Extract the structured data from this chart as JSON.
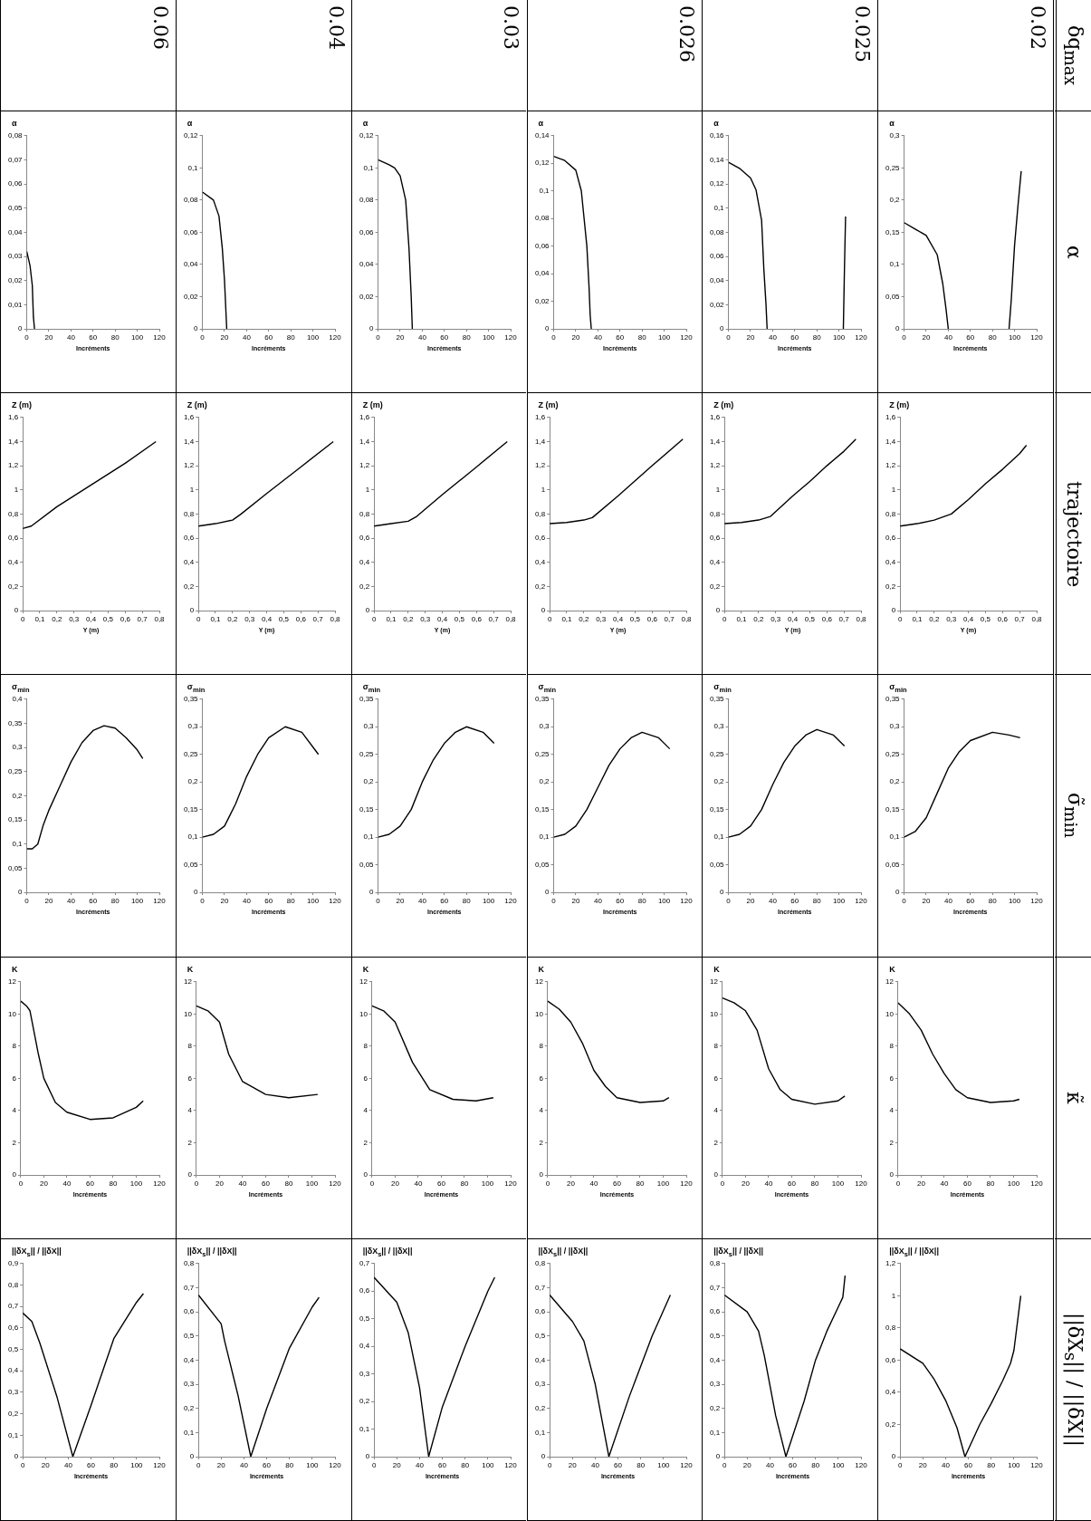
{
  "chart_data": [
    {
      "type": "other",
      "categories": [
        "δq$_{max}$",
        "α",
        "trajectoire",
        "σ̃$_{min}$",
        "κ̃",
        "||δX$_{s}$|| / ||δX||"
      ],
      "y_categories": [
        "0.02",
        "0.025",
        "0.026",
        "0.03",
        "0.04",
        "0.06"
      ]
    },
    {
      "type": "line",
      "ylabel": "α",
      "xlabel": "Incréments",
      "xlim": [
        0,
        120
      ],
      "xticks": [
        0,
        20,
        40,
        60,
        80,
        100,
        120
      ],
      "ylim": [
        0,
        0.3
      ],
      "yticks": [
        0,
        {
          "value": 0.05,
          "label": "0,05"
        },
        {
          "value": 0.1,
          "label": "0,1"
        },
        {
          "value": 0.15,
          "label": "0,15"
        },
        {
          "value": 0.2,
          "label": "0,2"
        },
        {
          "value": 0.25,
          "label": "0,25"
        },
        {
          "value": 0.3,
          "label": "0,3"
        }
      ],
      "color": "#000000",
      "x": [
        0,
        10,
        20,
        30,
        35,
        38,
        40,
        60,
        95,
        97,
        100,
        103,
        106
      ],
      "values": [
        0.165,
        0.155,
        0.145,
        0.115,
        0.07,
        0.03,
        0,
        null,
        0,
        0.045,
        0.13,
        0.19,
        0.245
      ]
    },
    {
      "type": "line",
      "ylabel": "Z (m)",
      "xlabel": "Y (m)",
      "xlim": [
        0,
        0.8
      ],
      "xticks": [
        0,
        {
          "value": 0.1,
          "label": "0,1"
        },
        {
          "value": 0.2,
          "label": "0,2"
        },
        {
          "value": 0.3,
          "label": "0,3"
        },
        {
          "value": 0.4,
          "label": "0,4"
        },
        {
          "value": 0.5,
          "label": "0,5"
        },
        {
          "value": 0.6,
          "label": "0,6"
        },
        {
          "value": 0.7,
          "label": "0,7"
        },
        {
          "value": 0.8,
          "label": "0,8"
        }
      ],
      "ylim": [
        0,
        1.6
      ],
      "yticks": [
        0,
        {
          "value": 0.2,
          "label": "0,2"
        },
        {
          "value": 0.4,
          "label": "0,4"
        },
        {
          "value": 0.6,
          "label": "0,6"
        },
        {
          "value": 0.8,
          "label": "0,8"
        },
        1,
        {
          "value": 1.2,
          "label": "1,2"
        },
        {
          "value": 1.4,
          "label": "1,4"
        },
        {
          "value": 1.6,
          "label": "1,6"
        }
      ],
      "color": "#000000",
      "x": [
        0,
        0.1,
        0.2,
        0.3,
        0.4,
        0.5,
        0.6,
        0.7,
        0.74
      ],
      "values": [
        0.7,
        0.72,
        0.75,
        0.8,
        0.92,
        1.05,
        1.17,
        1.3,
        1.37
      ]
    },
    {
      "type": "line",
      "ylabel": "σ$_{min}$",
      "xlabel": "Incréments",
      "xlim": [
        0,
        120
      ],
      "xticks": [
        0,
        20,
        40,
        60,
        80,
        100,
        120
      ],
      "ylim": [
        0,
        0.35
      ],
      "yticks": [
        0,
        {
          "value": 0.05,
          "label": "0,05"
        },
        {
          "value": 0.1,
          "label": "0,1"
        },
        {
          "value": 0.15,
          "label": "0,15"
        },
        {
          "value": 0.2,
          "label": "0,2"
        },
        {
          "value": 0.25,
          "label": "0,25"
        },
        {
          "value": 0.3,
          "label": "0,3"
        },
        {
          "value": 0.35,
          "label": "0,35"
        }
      ],
      "color": "#000000",
      "x": [
        0,
        10,
        20,
        30,
        40,
        50,
        60,
        80,
        95,
        105
      ],
      "values": [
        0.1,
        0.11,
        0.135,
        0.18,
        0.225,
        0.255,
        0.275,
        0.29,
        0.285,
        0.28
      ]
    },
    {
      "type": "line",
      "ylabel": "K",
      "xlabel": "Incréments",
      "xlim": [
        0,
        120
      ],
      "xticks": [
        0,
        20,
        40,
        60,
        80,
        100,
        120
      ],
      "ylim": [
        0,
        12
      ],
      "yticks": [
        0,
        2,
        4,
        6,
        8,
        10,
        12
      ],
      "color": "#000000",
      "x": [
        0,
        10,
        20,
        30,
        40,
        50,
        60,
        80,
        100,
        105
      ],
      "values": [
        10.7,
        10,
        9,
        7.5,
        6.3,
        5.3,
        4.8,
        4.5,
        4.6,
        4.7
      ]
    },
    {
      "type": "line",
      "ylabel": "||δX$_{s}$|| / ||δX||",
      "xlabel": "Incréments",
      "xlim": [
        0,
        120
      ],
      "xticks": [
        0,
        20,
        40,
        60,
        80,
        100,
        120
      ],
      "ylim": [
        0,
        1.2
      ],
      "yticks": [
        0,
        {
          "value": 0.2,
          "label": "0,2"
        },
        {
          "value": 0.4,
          "label": "0,4"
        },
        {
          "value": 0.6,
          "label": "0,6"
        },
        {
          "value": 0.8,
          "label": "0,8"
        },
        1,
        {
          "value": 1.2,
          "label": "1,2"
        }
      ],
      "color": "#000000",
      "x": [
        0,
        20,
        30,
        40,
        50,
        57,
        70,
        80,
        90,
        97,
        100,
        106
      ],
      "values": [
        0.67,
        0.58,
        0.48,
        0.35,
        0.18,
        0,
        0.2,
        0.33,
        0.47,
        0.58,
        0.66,
        1.0
      ]
    },
    {
      "type": "line",
      "ylabel": "α",
      "xlabel": "Incréments",
      "xlim": [
        0,
        120
      ],
      "xticks": [
        0,
        20,
        40,
        60,
        80,
        100,
        120
      ],
      "ylim": [
        0,
        0.16
      ],
      "yticks": [
        0,
        {
          "value": 0.02,
          "label": "0,02"
        },
        {
          "value": 0.04,
          "label": "0,04"
        },
        {
          "value": 0.06,
          "label": "0,06"
        },
        {
          "value": 0.08,
          "label": "0,08"
        },
        {
          "value": 0.1,
          "label": "0,1"
        },
        {
          "value": 0.12,
          "label": "0,12"
        },
        {
          "value": 0.14,
          "label": "0,14"
        },
        {
          "value": 0.16,
          "label": "0,16"
        }
      ],
      "color": "#000000",
      "x": [
        0,
        10,
        20,
        25,
        30,
        32,
        34,
        35,
        70,
        104,
        105,
        106
      ],
      "values": [
        0.138,
        0.133,
        0.125,
        0.115,
        0.09,
        0.05,
        0.02,
        0,
        null,
        0,
        0.05,
        0.093
      ]
    },
    {
      "type": "line",
      "ylabel": "Z (m)",
      "xlabel": "Y (m)",
      "xlim": [
        0,
        0.8
      ],
      "xticks": [
        0,
        {
          "value": 0.1,
          "label": "0,1"
        },
        {
          "value": 0.2,
          "label": "0,2"
        },
        {
          "value": 0.3,
          "label": "0,3"
        },
        {
          "value": 0.4,
          "label": "0,4"
        },
        {
          "value": 0.5,
          "label": "0,5"
        },
        {
          "value": 0.6,
          "label": "0,6"
        },
        {
          "value": 0.7,
          "label": "0,7"
        },
        {
          "value": 0.8,
          "label": "0,8"
        }
      ],
      "ylim": [
        0,
        1.6
      ],
      "yticks": [
        0,
        {
          "value": 0.2,
          "label": "0,2"
        },
        {
          "value": 0.4,
          "label": "0,4"
        },
        {
          "value": 0.6,
          "label": "0,6"
        },
        {
          "value": 0.8,
          "label": "0,8"
        },
        1,
        {
          "value": 1.2,
          "label": "1,2"
        },
        {
          "value": 1.4,
          "label": "1,4"
        },
        {
          "value": 1.6,
          "label": "1,6"
        }
      ],
      "color": "#000000",
      "x": [
        0,
        0.1,
        0.2,
        0.27,
        0.4,
        0.5,
        0.6,
        0.7,
        0.77
      ],
      "values": [
        0.72,
        0.73,
        0.75,
        0.78,
        0.95,
        1.07,
        1.2,
        1.32,
        1.42
      ]
    },
    {
      "type": "line",
      "ylabel": "σ$_{min}$",
      "xlabel": "Incréments",
      "xlim": [
        0,
        120
      ],
      "xticks": [
        0,
        20,
        40,
        60,
        80,
        100,
        120
      ],
      "ylim": [
        0,
        0.35
      ],
      "yticks": [
        0,
        {
          "value": 0.05,
          "label": "0,05"
        },
        {
          "value": 0.1,
          "label": "0,1"
        },
        {
          "value": 0.15,
          "label": "0,15"
        },
        {
          "value": 0.2,
          "label": "0,2"
        },
        {
          "value": 0.25,
          "label": "0,25"
        },
        {
          "value": 0.3,
          "label": "0,3"
        },
        {
          "value": 0.35,
          "label": "0,35"
        }
      ],
      "color": "#000000",
      "x": [
        0,
        10,
        20,
        30,
        40,
        50,
        60,
        70,
        80,
        95,
        105
      ],
      "values": [
        0.1,
        0.105,
        0.12,
        0.15,
        0.195,
        0.235,
        0.265,
        0.285,
        0.295,
        0.285,
        0.265
      ]
    },
    {
      "type": "line",
      "ylabel": "K",
      "xlabel": "Incréments",
      "xlim": [
        0,
        120
      ],
      "xticks": [
        0,
        20,
        40,
        60,
        80,
        100,
        120
      ],
      "ylim": [
        0,
        12
      ],
      "yticks": [
        0,
        2,
        4,
        6,
        8,
        10,
        12
      ],
      "color": "#000000",
      "x": [
        0,
        10,
        20,
        30,
        40,
        50,
        60,
        80,
        100,
        106
      ],
      "values": [
        11,
        10.7,
        10.2,
        9,
        6.6,
        5.3,
        4.7,
        4.4,
        4.6,
        4.9
      ]
    },
    {
      "type": "line",
      "ylabel": "||δX$_{s}$|| / ||δX||",
      "xlabel": "Incréments",
      "xlim": [
        0,
        120
      ],
      "xticks": [
        0,
        20,
        40,
        60,
        80,
        100,
        120
      ],
      "ylim": [
        0,
        0.8
      ],
      "yticks": [
        0,
        {
          "value": 0.1,
          "label": "0,1"
        },
        {
          "value": 0.2,
          "label": "0,2"
        },
        {
          "value": 0.3,
          "label": "0,3"
        },
        {
          "value": 0.4,
          "label": "0,4"
        },
        {
          "value": 0.5,
          "label": "0,5"
        },
        {
          "value": 0.6,
          "label": "0,6"
        },
        {
          "value": 0.7,
          "label": "0,7"
        },
        {
          "value": 0.8,
          "label": "0,8"
        }
      ],
      "color": "#000000",
      "x": [
        0,
        20,
        30,
        35,
        37,
        45,
        54,
        70,
        80,
        90,
        100,
        104,
        106
      ],
      "values": [
        0.67,
        0.6,
        0.52,
        0.42,
        0.37,
        0.17,
        0,
        0.23,
        0.4,
        0.52,
        0.62,
        0.66,
        0.75
      ]
    },
    {
      "type": "line",
      "ylabel": "α",
      "xlabel": "Incréments",
      "xlim": [
        0,
        120
      ],
      "xticks": [
        0,
        20,
        40,
        60,
        80,
        100,
        120
      ],
      "ylim": [
        0,
        0.14
      ],
      "yticks": [
        0,
        {
          "value": 0.02,
          "label": "0,02"
        },
        {
          "value": 0.04,
          "label": "0,04"
        },
        {
          "value": 0.06,
          "label": "0,06"
        },
        {
          "value": 0.08,
          "label": "0,08"
        },
        {
          "value": 0.1,
          "label": "0,1"
        },
        {
          "value": 0.12,
          "label": "0,12"
        },
        {
          "value": 0.14,
          "label": "0,14"
        }
      ],
      "color": "#000000",
      "x": [
        0,
        10,
        20,
        25,
        30,
        32,
        33,
        34
      ],
      "values": [
        0.125,
        0.122,
        0.115,
        0.1,
        0.06,
        0.03,
        0.01,
        0
      ]
    },
    {
      "type": "line",
      "ylabel": "Z (m)",
      "xlabel": "Y (m)",
      "xlim": [
        0,
        0.8
      ],
      "xticks": [
        0,
        {
          "value": 0.1,
          "label": "0,1"
        },
        {
          "value": 0.2,
          "label": "0,2"
        },
        {
          "value": 0.3,
          "label": "0,3"
        },
        {
          "value": 0.4,
          "label": "0,4"
        },
        {
          "value": 0.5,
          "label": "0,5"
        },
        {
          "value": 0.6,
          "label": "0,6"
        },
        {
          "value": 0.7,
          "label": "0,7"
        },
        {
          "value": 0.8,
          "label": "0,8"
        }
      ],
      "ylim": [
        0,
        1.6
      ],
      "yticks": [
        0,
        {
          "value": 0.2,
          "label": "0,2"
        },
        {
          "value": 0.4,
          "label": "0,4"
        },
        {
          "value": 0.6,
          "label": "0,6"
        },
        {
          "value": 0.8,
          "label": "0,8"
        },
        1,
        {
          "value": 1.2,
          "label": "1,2"
        },
        {
          "value": 1.4,
          "label": "1,4"
        },
        {
          "value": 1.6,
          "label": "1,6"
        }
      ],
      "color": "#000000",
      "x": [
        0,
        0.1,
        0.2,
        0.25,
        0.4,
        0.6,
        0.78
      ],
      "values": [
        0.72,
        0.73,
        0.75,
        0.77,
        0.95,
        1.2,
        1.42
      ]
    },
    {
      "type": "line",
      "ylabel": "σ$_{min}$",
      "xlabel": "Incréments",
      "xlim": [
        0,
        120
      ],
      "xticks": [
        0,
        20,
        40,
        60,
        80,
        100,
        120
      ],
      "ylim": [
        0,
        0.35
      ],
      "yticks": [
        0,
        {
          "value": 0.05,
          "label": "0,05"
        },
        {
          "value": 0.1,
          "label": "0,1"
        },
        {
          "value": 0.15,
          "label": "0,15"
        },
        {
          "value": 0.2,
          "label": "0,2"
        },
        {
          "value": 0.25,
          "label": "0,25"
        },
        {
          "value": 0.3,
          "label": "0,3"
        },
        {
          "value": 0.35,
          "label": "0,35"
        }
      ],
      "color": "#000000",
      "x": [
        0,
        10,
        20,
        30,
        40,
        50,
        60,
        70,
        80,
        95,
        105
      ],
      "values": [
        0.1,
        0.105,
        0.12,
        0.15,
        0.19,
        0.23,
        0.26,
        0.28,
        0.29,
        0.28,
        0.26
      ]
    },
    {
      "type": "line",
      "ylabel": "K",
      "xlabel": "Incréments",
      "xlim": [
        0,
        120
      ],
      "xticks": [
        0,
        20,
        40,
        60,
        80,
        100,
        120
      ],
      "ylim": [
        0,
        12
      ],
      "yticks": [
        0,
        2,
        4,
        6,
        8,
        10,
        12
      ],
      "color": "#000000",
      "x": [
        0,
        10,
        20,
        30,
        40,
        50,
        60,
        80,
        100,
        105
      ],
      "values": [
        10.8,
        10.3,
        9.5,
        8.2,
        6.5,
        5.5,
        4.8,
        4.5,
        4.6,
        4.8
      ]
    },
    {
      "type": "line",
      "ylabel": "||δX$_{s}$|| / ||δX||",
      "xlabel": "Incréments",
      "xlim": [
        0,
        120
      ],
      "xticks": [
        0,
        20,
        40,
        60,
        80,
        100,
        120
      ],
      "ylim": [
        0,
        0.8
      ],
      "yticks": [
        0,
        {
          "value": 0.1,
          "label": "0,1"
        },
        {
          "value": 0.2,
          "label": "0,2"
        },
        {
          "value": 0.3,
          "label": "0,3"
        },
        {
          "value": 0.4,
          "label": "0,4"
        },
        {
          "value": 0.5,
          "label": "0,5"
        },
        {
          "value": 0.6,
          "label": "0,6"
        },
        {
          "value": 0.7,
          "label": "0,7"
        },
        {
          "value": 0.8,
          "label": "0,8"
        }
      ],
      "color": "#000000",
      "x": [
        0,
        20,
        30,
        40,
        52,
        70,
        90,
        106
      ],
      "values": [
        0.67,
        0.56,
        0.48,
        0.3,
        0,
        0.25,
        0.5,
        0.67
      ]
    },
    {
      "type": "line",
      "ylabel": "α",
      "xlabel": "Incréments",
      "xlim": [
        0,
        120
      ],
      "xticks": [
        0,
        20,
        40,
        60,
        80,
        100,
        120
      ],
      "ylim": [
        0,
        0.12
      ],
      "yticks": [
        0,
        {
          "value": 0.02,
          "label": "0,02"
        },
        {
          "value": 0.04,
          "label": "0,04"
        },
        {
          "value": 0.06,
          "label": "0,06"
        },
        {
          "value": 0.08,
          "label": "0,08"
        },
        {
          "value": 0.1,
          "label": "0,1"
        },
        {
          "value": 0.12,
          "label": "0,12"
        }
      ],
      "color": "#000000",
      "x": [
        0,
        10,
        15,
        20,
        25,
        28,
        30,
        31
      ],
      "values": [
        0.105,
        0.102,
        0.1,
        0.095,
        0.08,
        0.05,
        0.02,
        0
      ]
    },
    {
      "type": "line",
      "ylabel": "Z (m)",
      "xlabel": "Y (m)",
      "xlim": [
        0,
        0.8
      ],
      "xticks": [
        0,
        {
          "value": 0.1,
          "label": "0,1"
        },
        {
          "value": 0.2,
          "label": "0,2"
        },
        {
          "value": 0.3,
          "label": "0,3"
        },
        {
          "value": 0.4,
          "label": "0,4"
        },
        {
          "value": 0.5,
          "label": "0,5"
        },
        {
          "value": 0.6,
          "label": "0,6"
        },
        {
          "value": 0.7,
          "label": "0,7"
        },
        {
          "value": 0.8,
          "label": "0,8"
        }
      ],
      "ylim": [
        0,
        1.6
      ],
      "yticks": [
        0,
        {
          "value": 0.2,
          "label": "0,2"
        },
        {
          "value": 0.4,
          "label": "0,4"
        },
        {
          "value": 0.6,
          "label": "0,6"
        },
        {
          "value": 0.8,
          "label": "0,8"
        },
        1,
        {
          "value": 1.2,
          "label": "1,2"
        },
        {
          "value": 1.4,
          "label": "1,4"
        },
        {
          "value": 1.6,
          "label": "1,6"
        }
      ],
      "color": "#000000",
      "x": [
        0,
        0.1,
        0.2,
        0.25,
        0.4,
        0.6,
        0.78
      ],
      "values": [
        0.7,
        0.72,
        0.74,
        0.78,
        0.96,
        1.19,
        1.4
      ]
    },
    {
      "type": "line",
      "ylabel": "σ$_{min}$",
      "xlabel": "Incréments",
      "xlim": [
        0,
        120
      ],
      "xticks": [
        0,
        20,
        40,
        60,
        80,
        100,
        120
      ],
      "ylim": [
        0,
        0.35
      ],
      "yticks": [
        0,
        {
          "value": 0.05,
          "label": "0,05"
        },
        {
          "value": 0.1,
          "label": "0,1"
        },
        {
          "value": 0.15,
          "label": "0,15"
        },
        {
          "value": 0.2,
          "label": "0,2"
        },
        {
          "value": 0.25,
          "label": "0,25"
        },
        {
          "value": 0.3,
          "label": "0,3"
        },
        {
          "value": 0.35,
          "label": "0,35"
        }
      ],
      "color": "#000000",
      "x": [
        0,
        10,
        20,
        30,
        40,
        50,
        60,
        70,
        80,
        95,
        105
      ],
      "values": [
        0.1,
        0.105,
        0.12,
        0.15,
        0.2,
        0.24,
        0.27,
        0.29,
        0.3,
        0.29,
        0.27
      ]
    },
    {
      "type": "line",
      "ylabel": "K",
      "xlabel": "Incréments",
      "xlim": [
        0,
        120
      ],
      "xticks": [
        0,
        20,
        40,
        60,
        80,
        100,
        120
      ],
      "ylim": [
        0,
        12
      ],
      "yticks": [
        0,
        2,
        4,
        6,
        8,
        10,
        12
      ],
      "color": "#000000",
      "x": [
        0,
        10,
        20,
        35,
        50,
        70,
        90,
        105
      ],
      "values": [
        10.5,
        10.2,
        9.5,
        7,
        5.3,
        4.7,
        4.6,
        4.8
      ]
    },
    {
      "type": "line",
      "ylabel": "||δX$_{s}$|| / ||δX||",
      "xlabel": "Incréments",
      "xlim": [
        0,
        120
      ],
      "xticks": [
        0,
        20,
        40,
        60,
        80,
        100,
        120
      ],
      "ylim": [
        0,
        0.7
      ],
      "yticks": [
        0,
        {
          "value": 0.1,
          "label": "0,1"
        },
        {
          "value": 0.2,
          "label": "0,2"
        },
        {
          "value": 0.3,
          "label": "0,3"
        },
        {
          "value": 0.4,
          "label": "0,4"
        },
        {
          "value": 0.5,
          "label": "0,5"
        },
        {
          "value": 0.6,
          "label": "0,6"
        },
        {
          "value": 0.7,
          "label": "0,7"
        }
      ],
      "color": "#000000",
      "x": [
        0,
        20,
        30,
        40,
        48,
        60,
        80,
        100,
        106
      ],
      "values": [
        0.65,
        0.56,
        0.45,
        0.25,
        0,
        0.18,
        0.4,
        0.6,
        0.65
      ]
    },
    {
      "type": "line",
      "ylabel": "α",
      "xlabel": "Incréments",
      "xlim": [
        0,
        120
      ],
      "xticks": [
        0,
        20,
        40,
        60,
        80,
        100,
        120
      ],
      "ylim": [
        0,
        0.12
      ],
      "yticks": [
        0,
        {
          "value": 0.02,
          "label": "0,02"
        },
        {
          "value": 0.04,
          "label": "0,04"
        },
        {
          "value": 0.06,
          "label": "0,06"
        },
        {
          "value": 0.08,
          "label": "0,08"
        },
        {
          "value": 0.1,
          "label": "0,1"
        },
        {
          "value": 0.12,
          "label": "0,12"
        }
      ],
      "color": "#000000",
      "x": [
        0,
        10,
        15,
        18,
        20,
        22
      ],
      "values": [
        0.085,
        0.08,
        0.07,
        0.05,
        0.03,
        0
      ]
    },
    {
      "type": "line",
      "ylabel": "Z (m)",
      "xlabel": "Y (m)",
      "xlim": [
        0,
        0.8
      ],
      "xticks": [
        0,
        {
          "value": 0.1,
          "label": "0,1"
        },
        {
          "value": 0.2,
          "label": "0,2"
        },
        {
          "value": 0.3,
          "label": "0,3"
        },
        {
          "value": 0.4,
          "label": "0,4"
        },
        {
          "value": 0.5,
          "label": "0,5"
        },
        {
          "value": 0.6,
          "label": "0,6"
        },
        {
          "value": 0.7,
          "label": "0,7"
        },
        {
          "value": 0.8,
          "label": "0,8"
        }
      ],
      "ylim": [
        0,
        1.6
      ],
      "yticks": [
        0,
        {
          "value": 0.2,
          "label": "0,2"
        },
        {
          "value": 0.4,
          "label": "0,4"
        },
        {
          "value": 0.6,
          "label": "0,6"
        },
        {
          "value": 0.8,
          "label": "0,8"
        },
        1,
        {
          "value": 1.2,
          "label": "1,2"
        },
        {
          "value": 1.4,
          "label": "1,4"
        },
        {
          "value": 1.6,
          "label": "1,6"
        }
      ],
      "color": "#000000",
      "x": [
        0,
        0.1,
        0.2,
        0.25,
        0.4,
        0.6,
        0.79
      ],
      "values": [
        0.7,
        0.72,
        0.75,
        0.8,
        0.97,
        1.19,
        1.4
      ]
    },
    {
      "type": "line",
      "ylabel": "σ$_{min}$",
      "xlabel": "Incréments",
      "xlim": [
        0,
        120
      ],
      "xticks": [
        0,
        20,
        40,
        60,
        80,
        100,
        120
      ],
      "ylim": [
        0,
        0.35
      ],
      "yticks": [
        0,
        {
          "value": 0.05,
          "label": "0,05"
        },
        {
          "value": 0.1,
          "label": "0,1"
        },
        {
          "value": 0.15,
          "label": "0,15"
        },
        {
          "value": 0.2,
          "label": "0,2"
        },
        {
          "value": 0.25,
          "label": "0,25"
        },
        {
          "value": 0.3,
          "label": "0,3"
        },
        {
          "value": 0.35,
          "label": "0,35"
        }
      ],
      "color": "#000000",
      "x": [
        0,
        10,
        20,
        30,
        40,
        50,
        60,
        75,
        90,
        105
      ],
      "values": [
        0.1,
        0.105,
        0.12,
        0.16,
        0.21,
        0.25,
        0.28,
        0.3,
        0.29,
        0.25
      ]
    },
    {
      "type": "line",
      "ylabel": "K",
      "xlabel": "Incréments",
      "xlim": [
        0,
        120
      ],
      "xticks": [
        0,
        20,
        40,
        60,
        80,
        100,
        120
      ],
      "ylim": [
        0,
        12
      ],
      "yticks": [
        0,
        2,
        4,
        6,
        8,
        10,
        12
      ],
      "color": "#000000",
      "x": [
        0,
        10,
        20,
        28,
        40,
        60,
        80,
        105
      ],
      "values": [
        10.5,
        10.2,
        9.5,
        7.5,
        5.8,
        5,
        4.8,
        5
      ]
    },
    {
      "type": "line",
      "ylabel": "||δX$_{s}$|| / ||δX||",
      "xlabel": "Incréments",
      "xlim": [
        0,
        120
      ],
      "xticks": [
        0,
        20,
        40,
        60,
        80,
        100,
        120
      ],
      "ylim": [
        0,
        0.8
      ],
      "yticks": [
        0,
        {
          "value": 0.1,
          "label": "0,1"
        },
        {
          "value": 0.2,
          "label": "0,2"
        },
        {
          "value": 0.3,
          "label": "0,3"
        },
        {
          "value": 0.4,
          "label": "0,4"
        },
        {
          "value": 0.5,
          "label": "0,5"
        },
        {
          "value": 0.6,
          "label": "0,6"
        },
        {
          "value": 0.7,
          "label": "0,7"
        },
        {
          "value": 0.8,
          "label": "0,8"
        }
      ],
      "color": "#000000",
      "x": [
        0,
        20,
        23,
        35,
        46,
        60,
        80,
        100,
        106
      ],
      "values": [
        0.67,
        0.55,
        0.48,
        0.25,
        0,
        0.2,
        0.45,
        0.62,
        0.66
      ]
    },
    {
      "type": "line",
      "ylabel": "α",
      "xlabel": "Incréments",
      "xlim": [
        0,
        120
      ],
      "xticks": [
        0,
        20,
        40,
        60,
        80,
        100,
        120
      ],
      "ylim": [
        0,
        0.08
      ],
      "yticks": [
        0,
        {
          "value": 0.01,
          "label": "0,01"
        },
        {
          "value": 0.02,
          "label": "0,02"
        },
        {
          "value": 0.03,
          "label": "0,03"
        },
        {
          "value": 0.04,
          "label": "0,04"
        },
        {
          "value": 0.05,
          "label": "0,05"
        },
        {
          "value": 0.06,
          "label": "0,06"
        },
        {
          "value": 0.07,
          "label": "0,07"
        },
        {
          "value": 0.08,
          "label": "0,08"
        }
      ],
      "color": "#000000",
      "x": [
        0,
        3,
        5,
        6,
        7
      ],
      "values": [
        0.032,
        0.026,
        0.018,
        0.005,
        0
      ]
    },
    {
      "type": "line",
      "ylabel": "Z (m)",
      "xlabel": "Y (m)",
      "xlim": [
        0,
        0.8
      ],
      "xticks": [
        0,
        {
          "value": 0.1,
          "label": "0,1"
        },
        {
          "value": 0.2,
          "label": "0,2"
        },
        {
          "value": 0.3,
          "label": "0,3"
        },
        {
          "value": 0.4,
          "label": "0,4"
        },
        {
          "value": 0.5,
          "label": "0,5"
        },
        {
          "value": 0.6,
          "label": "0,6"
        },
        {
          "value": 0.7,
          "label": "0,7"
        },
        {
          "value": 0.8,
          "label": "0,8"
        }
      ],
      "ylim": [
        0,
        1.6
      ],
      "yticks": [
        0,
        {
          "value": 0.2,
          "label": "0,2"
        },
        {
          "value": 0.4,
          "label": "0,4"
        },
        {
          "value": 0.6,
          "label": "0,6"
        },
        {
          "value": 0.8,
          "label": "0,8"
        },
        1,
        {
          "value": 1.2,
          "label": "1,2"
        },
        {
          "value": 1.4,
          "label": "1,4"
        },
        {
          "value": 1.6,
          "label": "1,6"
        }
      ],
      "color": "#000000",
      "x": [
        0,
        0.05,
        0.2,
        0.4,
        0.6,
        0.78
      ],
      "values": [
        0.68,
        0.7,
        0.86,
        1.04,
        1.22,
        1.4
      ]
    },
    {
      "type": "line",
      "ylabel": "σ$_{min}$",
      "xlabel": "Incréments",
      "xlim": [
        0,
        120
      ],
      "xticks": [
        0,
        20,
        40,
        60,
        80,
        100,
        120
      ],
      "ylim": [
        0,
        0.4
      ],
      "yticks": [
        0,
        {
          "value": 0.05,
          "label": "0,05"
        },
        {
          "value": 0.1,
          "label": "0,1"
        },
        {
          "value": 0.15,
          "label": "0,15"
        },
        {
          "value": 0.2,
          "label": "0,2"
        },
        {
          "value": 0.25,
          "label": "0,25"
        },
        {
          "value": 0.3,
          "label": "0,3"
        },
        {
          "value": 0.35,
          "label": "0,35"
        },
        {
          "value": 0.4,
          "label": "0,4"
        }
      ],
      "color": "#000000",
      "x": [
        0,
        5,
        10,
        15,
        20,
        30,
        40,
        50,
        60,
        70,
        80,
        90,
        100,
        105
      ],
      "values": [
        0.09,
        0.09,
        0.1,
        0.14,
        0.17,
        0.22,
        0.27,
        0.31,
        0.335,
        0.345,
        0.34,
        0.32,
        0.295,
        0.277
      ]
    },
    {
      "type": "line",
      "ylabel": "K",
      "xlabel": "Incréments",
      "xlim": [
        0,
        120
      ],
      "xticks": [
        0,
        20,
        40,
        60,
        80,
        100,
        120
      ],
      "ylim": [
        0,
        12
      ],
      "yticks": [
        0,
        2,
        4,
        6,
        8,
        10,
        12
      ],
      "color": "#000000",
      "x": [
        0,
        5,
        8,
        15,
        20,
        30,
        40,
        60,
        80,
        100,
        106
      ],
      "values": [
        10.8,
        10.5,
        10.2,
        7.6,
        6,
        4.5,
        3.9,
        3.45,
        3.55,
        4.2,
        4.6
      ]
    },
    {
      "type": "line",
      "ylabel": "||δX$_{s}$|| / ||δX||",
      "xlabel": "Incréments",
      "xlim": [
        0,
        120
      ],
      "xticks": [
        0,
        20,
        40,
        60,
        80,
        100,
        120
      ],
      "ylim": [
        0,
        0.9
      ],
      "yticks": [
        0,
        {
          "value": 0.1,
          "label": "0,1"
        },
        {
          "value": 0.2,
          "label": "0,2"
        },
        {
          "value": 0.3,
          "label": "0,3"
        },
        {
          "value": 0.4,
          "label": "0,4"
        },
        {
          "value": 0.5,
          "label": "0,5"
        },
        {
          "value": 0.6,
          "label": "0,6"
        },
        {
          "value": 0.7,
          "label": "0,7"
        },
        {
          "value": 0.8,
          "label": "0,8"
        },
        {
          "value": 0.9,
          "label": "0,9"
        }
      ],
      "color": "#000000",
      "x": [
        0,
        8,
        15,
        30,
        44,
        60,
        80,
        100,
        106
      ],
      "values": [
        0.67,
        0.63,
        0.53,
        0.28,
        0,
        0.24,
        0.55,
        0.72,
        0.76
      ]
    }
  ]
}
